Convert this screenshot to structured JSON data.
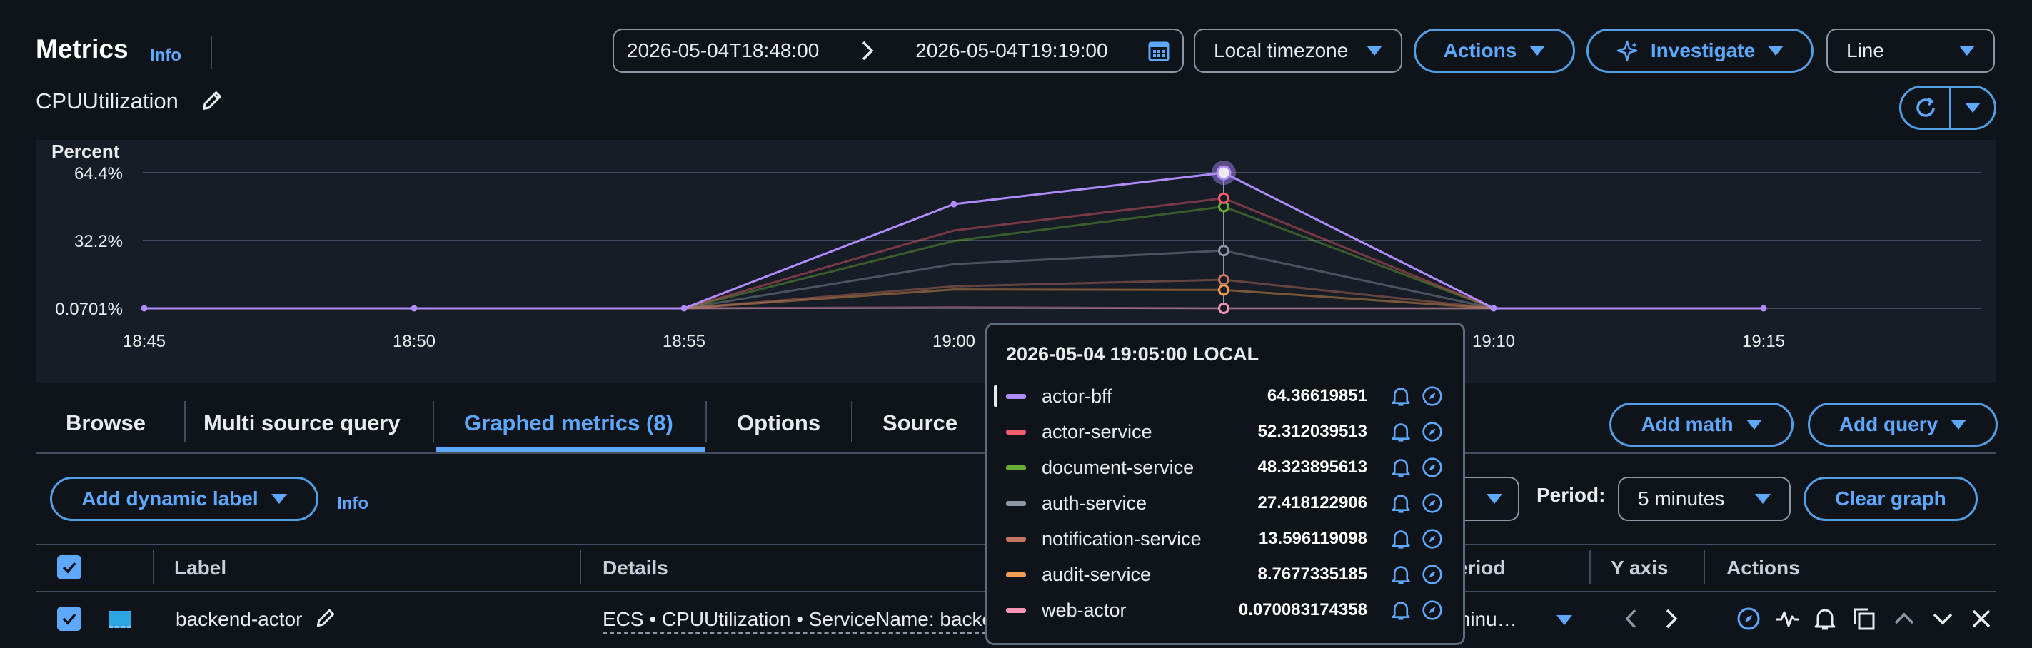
{
  "header": {
    "title": "Metrics",
    "info": "Info",
    "metric_name": "CPUUtilization",
    "time_start": "2026-05-04T18:48:00",
    "time_end": "2026-05-04T19:19:00",
    "timezone": "Local timezone",
    "actions": "Actions",
    "investigate": "Investigate",
    "chart_type": "Line"
  },
  "chart_data": {
    "type": "line",
    "ylabel": "Percent",
    "y_ticks": [
      "64.4%",
      "32.2%",
      "0.0701%"
    ],
    "x_ticks": [
      "18:45",
      "18:50",
      "18:55",
      "19:00",
      "19:05",
      "19:10",
      "19:15"
    ],
    "ylim": [
      0.0701,
      64.4
    ],
    "x": [
      "18:45",
      "18:50",
      "18:55",
      "19:00",
      "19:05",
      "19:10",
      "19:15"
    ],
    "series": [
      {
        "name": "actor-bff",
        "color": "#b18cff",
        "values": [
          0.07,
          0.07,
          0.07,
          49.5,
          64.37,
          0.07,
          0.07
        ]
      },
      {
        "name": "actor-service",
        "color": "#f25e6b",
        "values": [
          null,
          null,
          0.07,
          37.0,
          52.31,
          0.07,
          null
        ]
      },
      {
        "name": "document-service",
        "color": "#69ae34",
        "values": [
          null,
          null,
          0.07,
          32.0,
          48.32,
          0.07,
          null
        ]
      },
      {
        "name": "auth-service",
        "color": "#8c97a3",
        "values": [
          null,
          null,
          0.07,
          21.0,
          27.42,
          0.07,
          null
        ]
      },
      {
        "name": "notification-service",
        "color": "#c57560",
        "values": [
          null,
          null,
          0.07,
          10.5,
          13.6,
          0.07,
          null
        ]
      },
      {
        "name": "audit-service",
        "color": "#f39d51",
        "values": [
          null,
          null,
          0.07,
          9.0,
          8.77,
          0.07,
          null
        ]
      },
      {
        "name": "web-actor",
        "color": "#f495b5",
        "values": [
          null,
          null,
          0.07,
          0.5,
          0.07,
          0.07,
          null
        ]
      }
    ]
  },
  "tooltip": {
    "title": "2026-05-04 19:05:00 LOCAL",
    "rows": [
      {
        "label": "actor-bff",
        "value": "64.36619851",
        "color": "#b18cff"
      },
      {
        "label": "actor-service",
        "value": "52.312039513",
        "color": "#f25e6b"
      },
      {
        "label": "document-service",
        "value": "48.323895613",
        "color": "#69ae34"
      },
      {
        "label": "auth-service",
        "value": "27.418122906",
        "color": "#8c97a3"
      },
      {
        "label": "notification-service",
        "value": "13.596119098",
        "color": "#c57560"
      },
      {
        "label": "audit-service",
        "value": "8.7677335185",
        "color": "#f39d51"
      },
      {
        "label": "web-actor",
        "value": "0.070083174358",
        "color": "#f495b5"
      }
    ]
  },
  "tabs": [
    "Browse",
    "Multi source query",
    "Graphed metrics (8)",
    "Options",
    "Source"
  ],
  "buttons": {
    "add_math": "Add math",
    "add_query": "Add query",
    "add_dynamic_label": "Add dynamic label",
    "info": "Info",
    "period_label": "Period:",
    "period_value": "5 minutes",
    "clear_graph": "Clear graph",
    "stat_partial": "e"
  },
  "table": {
    "headers": {
      "label": "Label",
      "details": "Details",
      "period": "eriod",
      "yaxis": "Y axis",
      "actions": "Actions"
    },
    "row": {
      "label": "backend-actor",
      "details": "ECS • CPUUtilization • ServiceName: backe",
      "period": "minu…"
    }
  }
}
